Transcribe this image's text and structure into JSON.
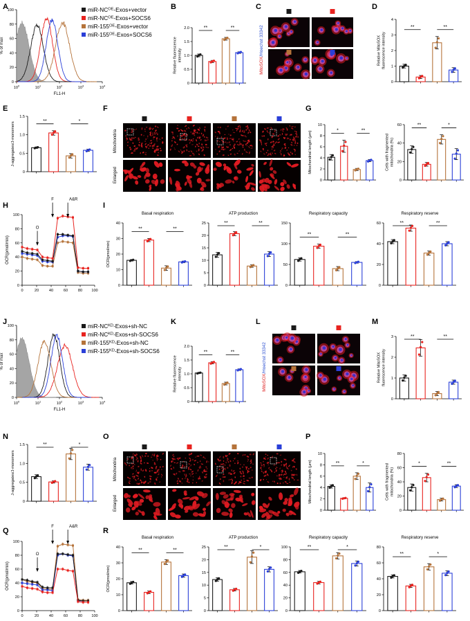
{
  "colors": {
    "black": "#1a1a1a",
    "red": "#e8231f",
    "brown": "#b5733a",
    "blue": "#2a3fd8",
    "iso": "#9a9a9a",
    "micro_bg": "#0b0306",
    "micro_red": "#e01b22",
    "micro_blue": "#2b2fd0",
    "micro_purple": "#c04fb0"
  },
  "legends": {
    "oe": [
      "miR-NC^OE-Exos+vector",
      "miR-NC^OE-Exos+SOCS6",
      "miR-155^OE-Exos+vector",
      "miR-155^OE-Exos+SOCS6"
    ],
    "kd": [
      "miR-NC^KD-Exos+sh-NC",
      "miR-NC^KD-Exos+sh-SOCS6",
      "miR-155^KD-Exos+sh-NC",
      "miR-155^KD-Exos+sh-SOCS6"
    ]
  },
  "micro_labels": {
    "mitosox": "MitoSOX",
    "hoechst": "/Hoechst 33342",
    "mitochondria": "Mitochondria",
    "enlarged": "Enlarged"
  },
  "chart_data": [
    {
      "id": "A",
      "type": "line",
      "xlabel": "FL1-H",
      "ylabel": "% of max",
      "xscale": "log",
      "xlim": [
        1,
        10000
      ],
      "ylim": [
        0,
        100
      ],
      "xticks": [
        "10^0",
        "10^1",
        "10^2",
        "10^3",
        "10^4"
      ],
      "yticks": [
        0,
        20,
        40,
        60,
        80,
        100
      ],
      "peaks": [
        {
          "center": 1.8,
          "height": 82,
          "width": 0.33,
          "shaded": true
        },
        {
          "center": 25,
          "height": 88,
          "width": 0.28
        },
        {
          "center": 9,
          "height": 78,
          "width": 0.3
        },
        {
          "center": 140,
          "height": 82,
          "width": 0.33
        },
        {
          "center": 45,
          "height": 86,
          "width": 0.27
        }
      ]
    },
    {
      "id": "B",
      "type": "bar",
      "ylabel": "Relative fluorescence intensity",
      "ylim": [
        0,
        2.0
      ],
      "yticks": [
        "0",
        "0.5",
        "1.0",
        "1.5",
        "2.0"
      ],
      "values": [
        1.0,
        0.78,
        1.6,
        1.1
      ],
      "errors": [
        0.05,
        0.04,
        0.05,
        0.03
      ],
      "sig": [
        {
          "a": 0,
          "b": 1,
          "label": "**"
        },
        {
          "a": 2,
          "b": 3,
          "label": "**"
        }
      ]
    },
    {
      "id": "D",
      "type": "bar",
      "ylabel": "Relative MitoSOX fluorescence intensity",
      "ylim": [
        0,
        4
      ],
      "yticks": [
        "0",
        "1",
        "2",
        "3",
        "4"
      ],
      "values": [
        1.0,
        0.3,
        2.5,
        0.75
      ],
      "errors": [
        0.12,
        0.1,
        0.4,
        0.15
      ],
      "sig": [
        {
          "a": 0,
          "b": 1,
          "label": "**"
        },
        {
          "a": 2,
          "b": 3,
          "label": "**"
        }
      ]
    },
    {
      "id": "E",
      "type": "bar",
      "ylabel": "J-aggregates/J-monomers",
      "ylim": [
        0,
        1.5
      ],
      "yticks": [
        "0",
        "0.5",
        "1.0",
        "1.5"
      ],
      "values": [
        0.65,
        1.05,
        0.43,
        0.58
      ],
      "errors": [
        0.02,
        0.06,
        0.06,
        0.03
      ],
      "sig": [
        {
          "a": 0,
          "b": 1,
          "label": "**"
        },
        {
          "a": 2,
          "b": 3,
          "label": "*"
        }
      ]
    },
    {
      "id": "G1",
      "type": "bar",
      "ylabel": "Mitochondrial length (μm)",
      "ylim": [
        0,
        10
      ],
      "yticks": [
        "0",
        "2",
        "4",
        "6",
        "8",
        "10"
      ],
      "values": [
        4.1,
        6.1,
        1.9,
        3.5
      ],
      "errors": [
        0.5,
        1.1,
        0.2,
        0.2
      ],
      "sig": [
        {
          "a": 0,
          "b": 1,
          "label": "*"
        },
        {
          "a": 2,
          "b": 3,
          "label": "**"
        }
      ]
    },
    {
      "id": "G2",
      "type": "bar",
      "ylabel": "Cells with fragmented mitochondria (%)",
      "ylim": [
        0,
        60
      ],
      "yticks": [
        "0",
        "20",
        "40",
        "60"
      ],
      "values": [
        33,
        17,
        44,
        28
      ],
      "errors": [
        4,
        2,
        5,
        6
      ],
      "sig": [
        {
          "a": 0,
          "b": 1,
          "label": "**"
        },
        {
          "a": 2,
          "b": 3,
          "label": "*"
        }
      ]
    },
    {
      "id": "H",
      "type": "line",
      "ylabel": "OCR(pmol/min)",
      "ylim": [
        0,
        100
      ],
      "xlim": [
        0,
        100
      ],
      "xticks": [
        "0",
        "20",
        "40",
        "60",
        "80",
        "100"
      ],
      "yticks": [
        "0",
        "20",
        "40",
        "60",
        "80",
        "100"
      ],
      "x": [
        0,
        7,
        14,
        21,
        28,
        35,
        42,
        49,
        56,
        63,
        70,
        77,
        84,
        91
      ],
      "series": [
        {
          "values": [
            48,
            46,
            45,
            44,
            36,
            35,
            34,
            72,
            72,
            71,
            70,
            20,
            19,
            19
          ]
        },
        {
          "values": [
            54,
            52,
            51,
            50,
            40,
            39,
            38,
            95,
            98,
            97,
            96,
            25,
            24,
            24
          ]
        },
        {
          "values": [
            40,
            38,
            37,
            36,
            28,
            27,
            27,
            60,
            62,
            61,
            60,
            18,
            17,
            17
          ]
        },
        {
          "values": [
            45,
            44,
            43,
            42,
            34,
            33,
            33,
            68,
            70,
            70,
            69,
            20,
            19,
            19
          ]
        }
      ],
      "arrows": [
        {
          "x": 21,
          "label": "O"
        },
        {
          "x": 42,
          "label": "F"
        },
        {
          "x": 63,
          "label": "A&R"
        }
      ]
    },
    {
      "id": "I1",
      "type": "bar",
      "title": "Basal respiration",
      "ylabel": "OCR(pmol/min)",
      "ylim": [
        0,
        40
      ],
      "yticks": [
        "0",
        "10",
        "20",
        "30",
        "40"
      ],
      "values": [
        16,
        29,
        11,
        15
      ],
      "errors": [
        0.5,
        1,
        1.5,
        0.5
      ],
      "sig": [
        {
          "a": 0,
          "b": 1,
          "label": "**"
        },
        {
          "a": 2,
          "b": 3,
          "label": "**"
        }
      ]
    },
    {
      "id": "I2",
      "type": "bar",
      "title": "ATP production",
      "ylim": [
        0,
        25
      ],
      "yticks": [
        "0",
        "5",
        "10",
        "15",
        "20",
        "25"
      ],
      "values": [
        12.2,
        20.7,
        7.7,
        12.5
      ],
      "errors": [
        1,
        0.8,
        0.5,
        1
      ],
      "sig": [
        {
          "a": 0,
          "b": 1,
          "label": "**"
        },
        {
          "a": 2,
          "b": 3,
          "label": "**"
        }
      ]
    },
    {
      "id": "I3",
      "type": "bar",
      "title": "Respiratory capacity",
      "ylim": [
        0,
        150
      ],
      "yticks": [
        "0",
        "50",
        "100",
        "150"
      ],
      "values": [
        62,
        94,
        40,
        55
      ],
      "errors": [
        4,
        5,
        5,
        2
      ],
      "sig": [
        {
          "a": 0,
          "b": 1,
          "label": "**"
        },
        {
          "a": 2,
          "b": 3,
          "label": "**"
        }
      ]
    },
    {
      "id": "I4",
      "type": "bar",
      "title": "Respiratory reserve",
      "ylim": [
        0,
        60
      ],
      "yticks": [
        "0",
        "20",
        "40",
        "60"
      ],
      "values": [
        42,
        55,
        31,
        40
      ],
      "errors": [
        2,
        3,
        2,
        2
      ],
      "sig": [
        {
          "a": 0,
          "b": 1,
          "label": "**"
        },
        {
          "a": 2,
          "b": 3,
          "label": "**"
        }
      ]
    },
    {
      "id": "J",
      "type": "line",
      "xlabel": "FL1-H",
      "ylabel": "% of max",
      "xscale": "log",
      "xlim": [
        1,
        10000
      ],
      "ylim": [
        0,
        100
      ],
      "xticks": [
        "10^0",
        "10^1",
        "10^2",
        "10^3",
        "10^4"
      ],
      "yticks": [
        0,
        20,
        40,
        60,
        80,
        100
      ],
      "peaks": [
        {
          "center": 1.8,
          "height": 82,
          "width": 0.33,
          "shaded": true
        },
        {
          "center": 55,
          "height": 88,
          "width": 0.27
        },
        {
          "center": 180,
          "height": 72,
          "width": 0.35
        },
        {
          "center": 20,
          "height": 78,
          "width": 0.3
        },
        {
          "center": 75,
          "height": 86,
          "width": 0.27
        }
      ]
    },
    {
      "id": "K",
      "type": "bar",
      "ylabel": "Relative fluorescence intensity",
      "ylim": [
        0,
        2.0
      ],
      "yticks": [
        "0",
        "0.5",
        "1.0",
        "1.5",
        "2.0"
      ],
      "values": [
        1.03,
        1.4,
        0.65,
        1.15
      ],
      "errors": [
        0.02,
        0.04,
        0.05,
        0.03
      ],
      "sig": [
        {
          "a": 0,
          "b": 1,
          "label": "**"
        },
        {
          "a": 2,
          "b": 3,
          "label": "**"
        }
      ]
    },
    {
      "id": "M",
      "type": "bar",
      "ylabel": "Relative MitoSOX fluorescence intensity",
      "ylim": [
        0,
        3
      ],
      "yticks": [
        "0",
        "1",
        "2",
        "3"
      ],
      "values": [
        1.0,
        2.45,
        0.25,
        0.8
      ],
      "errors": [
        0.15,
        0.4,
        0.1,
        0.1
      ],
      "sig": [
        {
          "a": 0,
          "b": 1,
          "label": "**"
        },
        {
          "a": 2,
          "b": 3,
          "label": "**"
        }
      ]
    },
    {
      "id": "N",
      "type": "bar",
      "ylabel": "J-aggregates/J-monomers",
      "ylim": [
        0,
        1.5
      ],
      "yticks": [
        "0",
        "0.5",
        "1.0",
        "1.5"
      ],
      "values": [
        0.65,
        0.51,
        1.25,
        0.9
      ],
      "errors": [
        0.05,
        0.03,
        0.15,
        0.08
      ],
      "sig": [
        {
          "a": 0,
          "b": 1,
          "label": "**"
        },
        {
          "a": 2,
          "b": 3,
          "label": "*"
        }
      ]
    },
    {
      "id": "P1",
      "type": "bar",
      "ylabel": "Mitochondrial length (μm)",
      "ylim": [
        0,
        10
      ],
      "yticks": [
        "0",
        "2",
        "4",
        "6",
        "8",
        "10"
      ],
      "values": [
        4.2,
        2.1,
        6.0,
        4.0
      ],
      "errors": [
        0.3,
        0.1,
        0.6,
        0.8
      ],
      "sig": [
        {
          "a": 0,
          "b": 1,
          "label": "**"
        },
        {
          "a": 2,
          "b": 3,
          "label": "*"
        }
      ]
    },
    {
      "id": "P2",
      "type": "bar",
      "ylabel": "Cells with fragmented mitochondria (%)",
      "ylim": [
        0,
        80
      ],
      "yticks": [
        "0",
        "20",
        "40",
        "60",
        "80"
      ],
      "values": [
        32,
        46,
        15,
        34
      ],
      "errors": [
        5,
        6,
        2,
        2
      ],
      "sig": [
        {
          "a": 0,
          "b": 1,
          "label": "*"
        },
        {
          "a": 2,
          "b": 3,
          "label": "**"
        }
      ]
    },
    {
      "id": "Q",
      "type": "line",
      "ylabel": "OCR(pmol/min)",
      "ylim": [
        0,
        100
      ],
      "xlim": [
        0,
        100
      ],
      "xticks": [
        "0",
        "20",
        "40",
        "60",
        "80",
        "100"
      ],
      "yticks": [
        "0",
        "20",
        "40",
        "60",
        "80",
        "100"
      ],
      "x": [
        0,
        7,
        14,
        21,
        28,
        35,
        42,
        49,
        56,
        63,
        70,
        77,
        84,
        91
      ],
      "series": [
        {
          "values": [
            45,
            44,
            42,
            41,
            34,
            33,
            33,
            82,
            82,
            81,
            80,
            15,
            14,
            14
          ]
        },
        {
          "values": [
            35,
            33,
            32,
            31,
            27,
            26,
            26,
            60,
            60,
            58,
            57,
            13,
            12,
            12
          ]
        },
        {
          "values": [
            45,
            42,
            41,
            40,
            32,
            31,
            31,
            93,
            96,
            95,
            94,
            16,
            15,
            15
          ]
        },
        {
          "values": [
            40,
            39,
            38,
            37,
            30,
            30,
            29,
            80,
            82,
            80,
            79,
            14,
            14,
            14
          ]
        }
      ],
      "arrows": [
        {
          "x": 21,
          "label": "O"
        },
        {
          "x": 42,
          "label": "F"
        },
        {
          "x": 63,
          "label": "A&R"
        }
      ]
    },
    {
      "id": "R1",
      "type": "bar",
      "title": "Basal respiration",
      "ylabel": "OCR(pmol/min)",
      "ylim": [
        0,
        40
      ],
      "yticks": [
        "0",
        "10",
        "20",
        "30",
        "40"
      ],
      "values": [
        17.5,
        11.5,
        30.5,
        22
      ],
      "errors": [
        0.8,
        0.8,
        1.5,
        1
      ],
      "sig": [
        {
          "a": 0,
          "b": 1,
          "label": "**"
        },
        {
          "a": 2,
          "b": 3,
          "label": "**"
        }
      ]
    },
    {
      "id": "R2",
      "type": "bar",
      "title": "ATP production",
      "ylim": [
        0,
        25
      ],
      "yticks": [
        "0",
        "5",
        "10",
        "15",
        "20",
        "25"
      ],
      "values": [
        12.2,
        8.2,
        21,
        16.2
      ],
      "errors": [
        0.7,
        0.5,
        2.5,
        1
      ],
      "sig": [
        {
          "a": 0,
          "b": 1,
          "label": "**"
        },
        {
          "a": 2,
          "b": 3,
          "label": "*"
        }
      ]
    },
    {
      "id": "R3",
      "type": "bar",
      "title": "Respiratory capacity",
      "ylim": [
        0,
        100
      ],
      "yticks": [
        "0",
        "20",
        "40",
        "60",
        "80",
        "100"
      ],
      "values": [
        61,
        44,
        86,
        74
      ],
      "errors": [
        2,
        2,
        5,
        4
      ],
      "sig": [
        {
          "a": 0,
          "b": 1,
          "label": "**"
        },
        {
          "a": 2,
          "b": 3,
          "label": "*"
        }
      ]
    },
    {
      "id": "R4",
      "type": "bar",
      "title": "Respiratory reserve",
      "ylim": [
        0,
        80
      ],
      "yticks": [
        "0",
        "20",
        "40",
        "60",
        "80"
      ],
      "values": [
        43,
        31,
        55,
        47
      ],
      "errors": [
        2,
        2,
        4,
        3
      ],
      "sig": [
        {
          "a": 0,
          "b": 1,
          "label": "**"
        },
        {
          "a": 2,
          "b": 3,
          "label": "*"
        }
      ]
    }
  ]
}
